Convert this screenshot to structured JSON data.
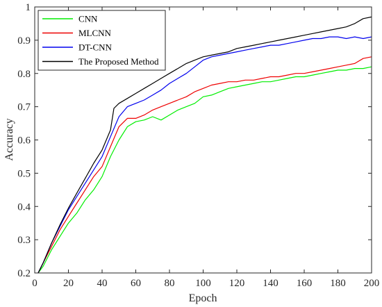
{
  "chart_data": {
    "type": "line",
    "title": "",
    "xlabel": "Epoch",
    "ylabel": "Accuracy",
    "xlim": [
      0,
      200
    ],
    "ylim": [
      0.2,
      1
    ],
    "xticks": [
      0,
      20,
      40,
      60,
      80,
      100,
      120,
      140,
      160,
      180,
      200
    ],
    "yticks": [
      0.2,
      0.3,
      0.4,
      0.5,
      0.6,
      0.7,
      0.8,
      0.9,
      1
    ],
    "grid": false,
    "legend_position": "top-left",
    "series": [
      {
        "name": "CNN",
        "color": "#00ee00",
        "x": [
          2,
          5,
          10,
          15,
          20,
          25,
          30,
          35,
          40,
          45,
          50,
          55,
          60,
          65,
          70,
          75,
          80,
          85,
          90,
          95,
          100,
          105,
          110,
          115,
          120,
          125,
          130,
          135,
          140,
          145,
          150,
          155,
          160,
          165,
          170,
          175,
          180,
          185,
          190,
          195,
          200
        ],
        "y": [
          0.2,
          0.22,
          0.27,
          0.31,
          0.35,
          0.38,
          0.42,
          0.45,
          0.49,
          0.55,
          0.6,
          0.64,
          0.655,
          0.66,
          0.67,
          0.66,
          0.675,
          0.69,
          0.7,
          0.71,
          0.73,
          0.735,
          0.745,
          0.755,
          0.76,
          0.765,
          0.77,
          0.775,
          0.775,
          0.78,
          0.785,
          0.79,
          0.79,
          0.795,
          0.8,
          0.805,
          0.81,
          0.81,
          0.815,
          0.815,
          0.82
        ]
      },
      {
        "name": "MLCNN",
        "color": "#ee0000",
        "x": [
          2,
          5,
          10,
          15,
          20,
          25,
          30,
          35,
          40,
          45,
          50,
          55,
          60,
          65,
          70,
          75,
          80,
          85,
          90,
          95,
          100,
          105,
          110,
          115,
          120,
          125,
          130,
          135,
          140,
          145,
          150,
          155,
          160,
          165,
          170,
          175,
          180,
          185,
          190,
          195,
          200
        ],
        "y": [
          0.2,
          0.23,
          0.28,
          0.33,
          0.37,
          0.41,
          0.45,
          0.49,
          0.52,
          0.58,
          0.64,
          0.665,
          0.665,
          0.675,
          0.69,
          0.7,
          0.71,
          0.72,
          0.73,
          0.745,
          0.755,
          0.765,
          0.77,
          0.775,
          0.775,
          0.78,
          0.78,
          0.785,
          0.79,
          0.79,
          0.795,
          0.8,
          0.8,
          0.805,
          0.81,
          0.815,
          0.82,
          0.825,
          0.83,
          0.845,
          0.85
        ]
      },
      {
        "name": "DT-CNN",
        "color": "#0000ee",
        "x": [
          2,
          5,
          10,
          15,
          20,
          25,
          30,
          35,
          40,
          45,
          50,
          55,
          60,
          65,
          70,
          75,
          80,
          85,
          90,
          95,
          100,
          105,
          110,
          115,
          120,
          125,
          130,
          135,
          140,
          145,
          150,
          155,
          160,
          165,
          170,
          175,
          180,
          185,
          190,
          195,
          200
        ],
        "y": [
          0.2,
          0.23,
          0.29,
          0.34,
          0.39,
          0.43,
          0.47,
          0.51,
          0.55,
          0.61,
          0.67,
          0.7,
          0.71,
          0.72,
          0.735,
          0.75,
          0.77,
          0.785,
          0.8,
          0.82,
          0.84,
          0.85,
          0.855,
          0.86,
          0.865,
          0.87,
          0.875,
          0.88,
          0.885,
          0.885,
          0.89,
          0.895,
          0.9,
          0.905,
          0.905,
          0.91,
          0.91,
          0.905,
          0.91,
          0.905,
          0.91
        ]
      },
      {
        "name": "The Proposed Method",
        "color": "#000000",
        "x": [
          2,
          5,
          10,
          15,
          20,
          25,
          30,
          35,
          40,
          45,
          47,
          50,
          55,
          60,
          65,
          70,
          75,
          80,
          85,
          90,
          95,
          100,
          105,
          110,
          115,
          120,
          125,
          130,
          135,
          140,
          145,
          150,
          155,
          160,
          165,
          170,
          175,
          180,
          185,
          190,
          195,
          200
        ],
        "y": [
          0.2,
          0.23,
          0.29,
          0.345,
          0.395,
          0.44,
          0.485,
          0.53,
          0.57,
          0.63,
          0.695,
          0.71,
          0.725,
          0.74,
          0.755,
          0.77,
          0.785,
          0.8,
          0.815,
          0.83,
          0.84,
          0.85,
          0.855,
          0.86,
          0.865,
          0.875,
          0.88,
          0.885,
          0.89,
          0.895,
          0.9,
          0.905,
          0.91,
          0.915,
          0.92,
          0.925,
          0.93,
          0.935,
          0.94,
          0.95,
          0.965,
          0.97
        ]
      }
    ]
  }
}
